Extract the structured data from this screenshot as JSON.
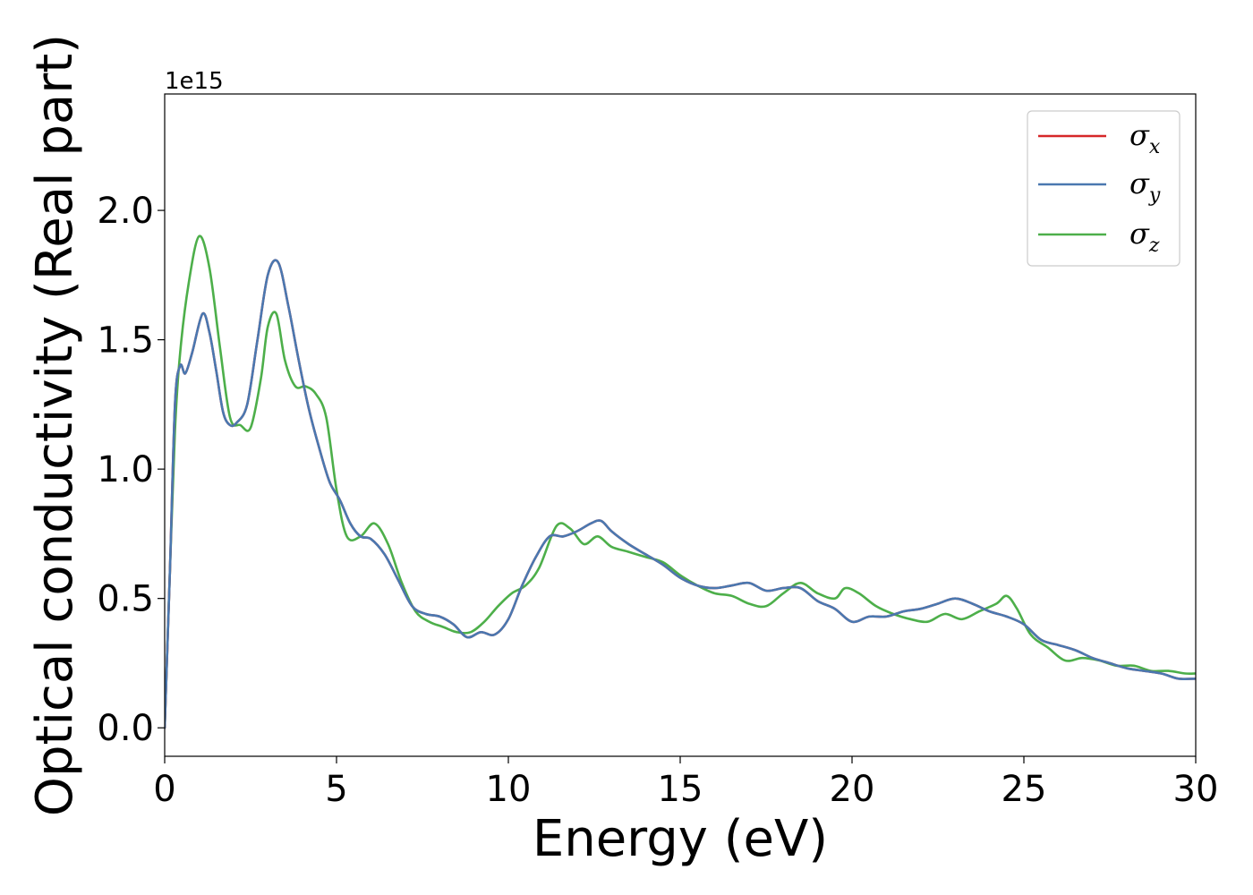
{
  "chart_data": {
    "type": "line",
    "title": "",
    "xlabel": "Energy (eV)",
    "ylabel": "Optical conductivity (Real part)",
    "y_offset_label": "1e15",
    "xlim": [
      0,
      30
    ],
    "ylim": [
      -0.11,
      2.45
    ],
    "x_ticks": [
      0,
      5,
      10,
      15,
      20,
      25,
      30
    ],
    "x_tick_labels": [
      "0",
      "5",
      "10",
      "15",
      "20",
      "25",
      "30"
    ],
    "y_ticks": [
      0.0,
      0.5,
      1.0,
      1.5,
      2.0
    ],
    "y_tick_labels": [
      "0.0",
      "0.5",
      "1.0",
      "1.5",
      "2.0"
    ],
    "grid": false,
    "legend_position": "top-right",
    "legend": [
      {
        "base": "σ",
        "sub": "x",
        "color": "#d62728"
      },
      {
        "base": "σ",
        "sub": "y",
        "color": "#4a78b0"
      },
      {
        "base": "σ",
        "sub": "z",
        "color": "#4daf4a"
      }
    ],
    "series": [
      {
        "name": "σx",
        "color": "#d62728",
        "x": [
          0,
          0.15,
          0.3,
          0.45,
          0.6,
          0.8,
          1.1,
          1.3,
          1.5,
          1.7,
          1.9,
          2.1,
          2.4,
          2.7,
          3.0,
          3.3,
          3.6,
          3.9,
          4.2,
          4.5,
          4.8,
          5.1,
          5.4,
          5.7,
          6.0,
          6.4,
          6.8,
          7.2,
          7.6,
          8.0,
          8.4,
          8.8,
          9.2,
          9.6,
          10.0,
          10.4,
          10.8,
          11.2,
          11.6,
          12.0,
          12.4,
          12.7,
          13.0,
          13.5,
          14.0,
          14.5,
          15.0,
          15.5,
          16.0,
          16.5,
          17.0,
          17.5,
          18.0,
          18.5,
          19.0,
          19.5,
          20.0,
          20.5,
          21.0,
          21.5,
          22.0,
          22.5,
          23.0,
          23.5,
          24.0,
          24.5,
          25.0,
          25.5,
          26.0,
          26.5,
          27.0,
          27.5,
          28.0,
          28.5,
          29.0,
          29.5,
          30.0
        ],
        "values": [
          0.0,
          0.6,
          1.25,
          1.4,
          1.37,
          1.45,
          1.6,
          1.53,
          1.38,
          1.22,
          1.17,
          1.18,
          1.25,
          1.5,
          1.75,
          1.8,
          1.63,
          1.42,
          1.23,
          1.08,
          0.95,
          0.88,
          0.79,
          0.74,
          0.73,
          0.67,
          0.57,
          0.47,
          0.44,
          0.43,
          0.4,
          0.35,
          0.37,
          0.36,
          0.42,
          0.55,
          0.66,
          0.74,
          0.74,
          0.76,
          0.79,
          0.8,
          0.76,
          0.71,
          0.67,
          0.63,
          0.58,
          0.55,
          0.54,
          0.55,
          0.56,
          0.53,
          0.54,
          0.54,
          0.49,
          0.46,
          0.41,
          0.43,
          0.43,
          0.45,
          0.46,
          0.48,
          0.5,
          0.48,
          0.45,
          0.43,
          0.4,
          0.34,
          0.32,
          0.3,
          0.27,
          0.25,
          0.23,
          0.22,
          0.21,
          0.19,
          0.19
        ]
      },
      {
        "name": "σy",
        "color": "#4a78b0",
        "x": [
          0,
          0.15,
          0.3,
          0.45,
          0.6,
          0.8,
          1.1,
          1.3,
          1.5,
          1.7,
          1.9,
          2.1,
          2.4,
          2.7,
          3.0,
          3.3,
          3.6,
          3.9,
          4.2,
          4.5,
          4.8,
          5.1,
          5.4,
          5.7,
          6.0,
          6.4,
          6.8,
          7.2,
          7.6,
          8.0,
          8.4,
          8.8,
          9.2,
          9.6,
          10.0,
          10.4,
          10.8,
          11.2,
          11.6,
          12.0,
          12.4,
          12.7,
          13.0,
          13.5,
          14.0,
          14.5,
          15.0,
          15.5,
          16.0,
          16.5,
          17.0,
          17.5,
          18.0,
          18.5,
          19.0,
          19.5,
          20.0,
          20.5,
          21.0,
          21.5,
          22.0,
          22.5,
          23.0,
          23.5,
          24.0,
          24.5,
          25.0,
          25.5,
          26.0,
          26.5,
          27.0,
          27.5,
          28.0,
          28.5,
          29.0,
          29.5,
          30.0
        ],
        "values": [
          0.0,
          0.6,
          1.25,
          1.4,
          1.37,
          1.45,
          1.6,
          1.53,
          1.38,
          1.22,
          1.17,
          1.18,
          1.25,
          1.5,
          1.75,
          1.8,
          1.63,
          1.42,
          1.23,
          1.08,
          0.95,
          0.88,
          0.79,
          0.74,
          0.73,
          0.67,
          0.57,
          0.47,
          0.44,
          0.43,
          0.4,
          0.35,
          0.37,
          0.36,
          0.42,
          0.55,
          0.66,
          0.74,
          0.74,
          0.76,
          0.79,
          0.8,
          0.76,
          0.71,
          0.67,
          0.63,
          0.58,
          0.55,
          0.54,
          0.55,
          0.56,
          0.53,
          0.54,
          0.54,
          0.49,
          0.46,
          0.41,
          0.43,
          0.43,
          0.45,
          0.46,
          0.48,
          0.5,
          0.48,
          0.45,
          0.43,
          0.4,
          0.34,
          0.32,
          0.3,
          0.27,
          0.25,
          0.23,
          0.22,
          0.21,
          0.19,
          0.19
        ]
      },
      {
        "name": "σz",
        "color": "#4daf4a",
        "x": [
          0,
          0.15,
          0.3,
          0.45,
          0.7,
          1.0,
          1.3,
          1.6,
          1.9,
          2.2,
          2.5,
          2.8,
          3.0,
          3.25,
          3.5,
          3.8,
          4.1,
          4.4,
          4.7,
          5.0,
          5.3,
          5.7,
          6.1,
          6.5,
          6.9,
          7.3,
          7.7,
          8.1,
          8.5,
          8.9,
          9.3,
          9.7,
          10.1,
          10.5,
          10.9,
          11.4,
          11.8,
          12.2,
          12.6,
          13.0,
          13.5,
          14.0,
          14.5,
          15.0,
          15.5,
          16.0,
          16.5,
          17.0,
          17.5,
          18.0,
          18.5,
          19.0,
          19.5,
          19.8,
          20.2,
          20.7,
          21.2,
          21.7,
          22.2,
          22.7,
          23.2,
          23.7,
          24.2,
          24.5,
          24.8,
          25.2,
          25.7,
          26.2,
          26.7,
          27.2,
          27.7,
          28.2,
          28.7,
          29.2,
          29.7,
          30.0
        ],
        "values": [
          0.0,
          0.6,
          1.15,
          1.45,
          1.72,
          1.9,
          1.78,
          1.48,
          1.2,
          1.17,
          1.16,
          1.35,
          1.55,
          1.6,
          1.42,
          1.32,
          1.32,
          1.29,
          1.2,
          0.92,
          0.74,
          0.74,
          0.79,
          0.71,
          0.56,
          0.45,
          0.41,
          0.39,
          0.37,
          0.37,
          0.41,
          0.47,
          0.52,
          0.55,
          0.62,
          0.78,
          0.77,
          0.71,
          0.74,
          0.7,
          0.68,
          0.66,
          0.64,
          0.59,
          0.55,
          0.52,
          0.51,
          0.48,
          0.47,
          0.52,
          0.56,
          0.52,
          0.5,
          0.54,
          0.52,
          0.47,
          0.44,
          0.42,
          0.41,
          0.44,
          0.42,
          0.45,
          0.48,
          0.51,
          0.46,
          0.36,
          0.31,
          0.26,
          0.27,
          0.26,
          0.24,
          0.24,
          0.22,
          0.22,
          0.21,
          0.21
        ]
      }
    ]
  }
}
